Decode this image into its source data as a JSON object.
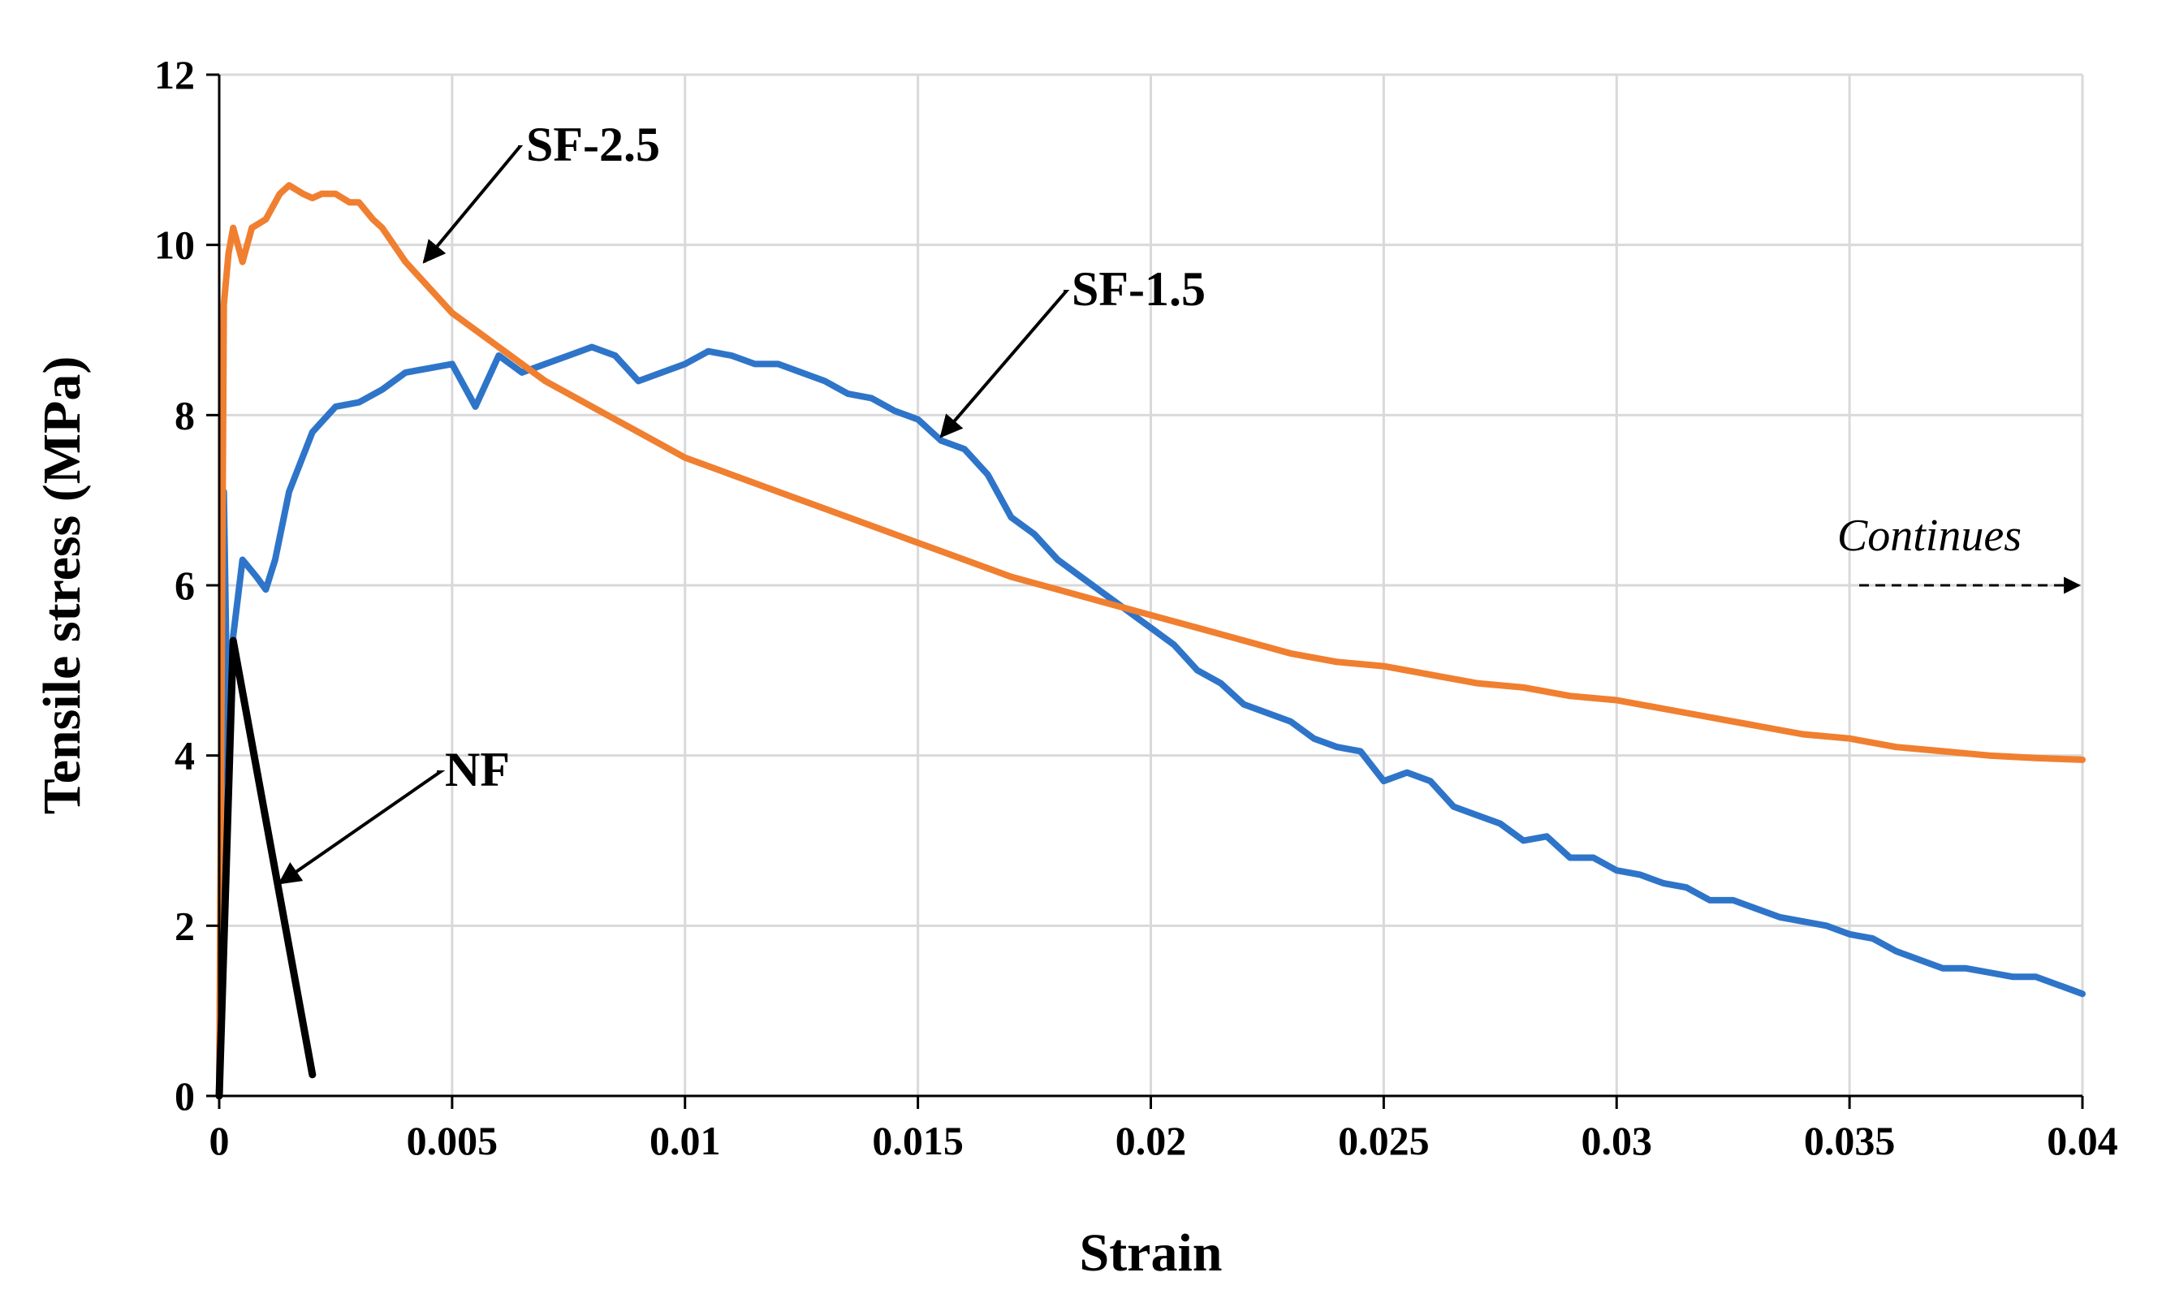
{
  "chart_data": {
    "type": "line",
    "title": "",
    "xlabel": "Strain",
    "ylabel": "Tensile stress (MPa)",
    "xlim": [
      0,
      0.04
    ],
    "ylim": [
      0,
      12
    ],
    "grid": true,
    "x_tick_labels": [
      "0",
      "0.005",
      "0.01",
      "0.015",
      "0.02",
      "0.025",
      "0.03",
      "0.035",
      "0.04"
    ],
    "y_tick_labels": [
      "0",
      "2",
      "4",
      "6",
      "8",
      "10",
      "12"
    ],
    "series": [
      {
        "name": "SF-1.5",
        "color": "#2e75c9",
        "x": [
          0,
          0.0001,
          0.0002,
          0.0003,
          0.0005,
          0.0008,
          0.001,
          0.0012,
          0.0015,
          0.002,
          0.0025,
          0.003,
          0.0035,
          0.004,
          0.0045,
          0.005,
          0.0055,
          0.006,
          0.0065,
          0.007,
          0.0075,
          0.008,
          0.0085,
          0.009,
          0.0095,
          0.01,
          0.0105,
          0.011,
          0.0115,
          0.012,
          0.0125,
          0.013,
          0.0135,
          0.014,
          0.0145,
          0.015,
          0.0155,
          0.016,
          0.0165,
          0.017,
          0.0175,
          0.018,
          0.0185,
          0.019,
          0.0195,
          0.02,
          0.0205,
          0.021,
          0.0215,
          0.022,
          0.0225,
          0.023,
          0.0235,
          0.024,
          0.0245,
          0.025,
          0.0255,
          0.026,
          0.0265,
          0.027,
          0.0275,
          0.028,
          0.0285,
          0.029,
          0.0295,
          0.03,
          0.0305,
          0.031,
          0.0315,
          0.032,
          0.0325,
          0.033,
          0.0335,
          0.034,
          0.0345,
          0.035,
          0.0355,
          0.036,
          0.0365,
          0.037,
          0.0375,
          0.038,
          0.0385,
          0.039,
          0.0395,
          0.04
        ],
        "y": [
          0,
          7.1,
          3.5,
          5.4,
          6.3,
          6.1,
          5.95,
          6.3,
          7.1,
          7.8,
          8.1,
          8.15,
          8.3,
          8.5,
          8.55,
          8.6,
          8.1,
          8.7,
          8.5,
          8.6,
          8.7,
          8.8,
          8.7,
          8.4,
          8.5,
          8.6,
          8.75,
          8.7,
          8.6,
          8.6,
          8.5,
          8.4,
          8.25,
          8.2,
          8.05,
          7.95,
          7.7,
          7.6,
          7.3,
          6.8,
          6.6,
          6.3,
          6.1,
          5.9,
          5.7,
          5.5,
          5.3,
          5.0,
          4.85,
          4.6,
          4.5,
          4.4,
          4.2,
          4.1,
          4.05,
          3.7,
          3.8,
          3.7,
          3.4,
          3.3,
          3.2,
          3.0,
          3.05,
          2.8,
          2.8,
          2.65,
          2.6,
          2.5,
          2.45,
          2.3,
          2.3,
          2.2,
          2.1,
          2.05,
          2.0,
          1.9,
          1.85,
          1.7,
          1.6,
          1.5,
          1.5,
          1.45,
          1.4,
          1.4,
          1.3,
          1.2
        ]
      },
      {
        "name": "SF-2.5",
        "color": "#f07f30",
        "x": [
          0,
          0.0001,
          0.0002,
          0.0003,
          0.0005,
          0.0007,
          0.001,
          0.0013,
          0.0015,
          0.0018,
          0.002,
          0.0022,
          0.0025,
          0.0028,
          0.003,
          0.0033,
          0.0035,
          0.004,
          0.0045,
          0.005,
          0.0055,
          0.006,
          0.0065,
          0.007,
          0.008,
          0.009,
          0.01,
          0.011,
          0.012,
          0.013,
          0.014,
          0.015,
          0.016,
          0.017,
          0.018,
          0.019,
          0.02,
          0.021,
          0.022,
          0.023,
          0.024,
          0.025,
          0.026,
          0.027,
          0.028,
          0.029,
          0.03,
          0.031,
          0.032,
          0.033,
          0.034,
          0.035,
          0.036,
          0.037,
          0.038,
          0.039,
          0.04
        ],
        "y": [
          0,
          9.3,
          9.9,
          10.2,
          9.8,
          10.2,
          10.3,
          10.6,
          10.7,
          10.6,
          10.55,
          10.6,
          10.6,
          10.5,
          10.5,
          10.3,
          10.2,
          9.8,
          9.5,
          9.2,
          9.0,
          8.8,
          8.6,
          8.4,
          8.1,
          7.8,
          7.5,
          7.3,
          7.1,
          6.9,
          6.7,
          6.5,
          6.3,
          6.1,
          5.95,
          5.8,
          5.65,
          5.5,
          5.35,
          5.2,
          5.1,
          5.05,
          4.95,
          4.85,
          4.8,
          4.7,
          4.65,
          4.55,
          4.45,
          4.35,
          4.25,
          4.2,
          4.1,
          4.05,
          4.0,
          3.97,
          3.95
        ]
      },
      {
        "name": "NF",
        "color": "#000000",
        "x": [
          0,
          0.0003,
          0.002
        ],
        "y": [
          0,
          5.35,
          0.25
        ]
      }
    ],
    "annotations": [
      {
        "label": "SF-2.5",
        "target_series": "SF-2.5",
        "target": [
          0.0044,
          9.8
        ]
      },
      {
        "label": "SF-1.5",
        "target_series": "SF-1.5",
        "target": [
          0.0155,
          7.75
        ]
      },
      {
        "label": "NF",
        "target_series": "NF",
        "target": [
          0.0013,
          2.5
        ]
      },
      {
        "label": "Continues",
        "style": "italic",
        "arrow_to": [
          0.04,
          6.0
        ]
      }
    ]
  }
}
